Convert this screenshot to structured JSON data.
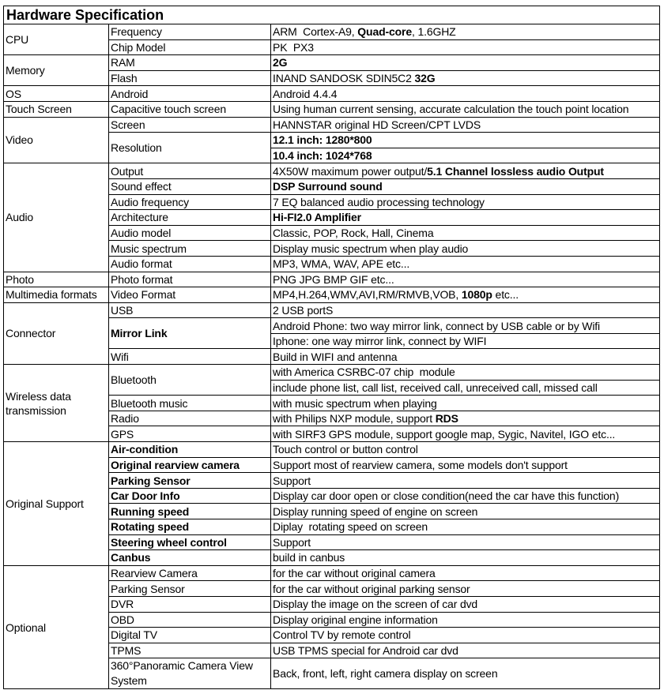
{
  "title": "Hardware Specification",
  "groups": [
    {
      "category": "CPU",
      "items": [
        {
          "name": "Frequency",
          "lines": [
            [
              {
                "t": "ARM  Cortex-A9, "
              },
              {
                "t": "Quad-core",
                "b": true
              },
              {
                "t": ", 1.6GHZ"
              }
            ]
          ]
        },
        {
          "name": "Chip Model",
          "lines": [
            [
              {
                "t": "PK  PX3"
              }
            ]
          ]
        }
      ]
    },
    {
      "category": "Memory",
      "items": [
        {
          "name": "RAM",
          "lines": [
            [
              {
                "t": "2G",
                "b": true
              }
            ]
          ]
        },
        {
          "name": "Flash",
          "lines": [
            [
              {
                "t": "INAND SANDOSK SDIN5C2 "
              },
              {
                "t": "32G",
                "b": true
              }
            ]
          ]
        }
      ]
    },
    {
      "category": "OS",
      "items": [
        {
          "name": "Android",
          "lines": [
            [
              {
                "t": "Android 4.4.4"
              }
            ]
          ]
        }
      ]
    },
    {
      "category": "Touch Screen",
      "items": [
        {
          "name": "Capacitive touch screen",
          "lines": [
            [
              {
                "t": "Using human current sensing, accurate calculation the touch point location"
              }
            ]
          ]
        }
      ]
    },
    {
      "category": "Video",
      "items": [
        {
          "name": "Screen",
          "lines": [
            [
              {
                "t": "HANNSTAR original HD Screen/CPT LVDS"
              }
            ]
          ]
        },
        {
          "name": "Resolution",
          "lines": [
            [
              {
                "t": "12.1 inch: 1280*800",
                "b": true
              }
            ],
            [
              {
                "t": "10.4 inch: 1024*768",
                "b": true
              }
            ]
          ]
        }
      ]
    },
    {
      "category": "Audio",
      "items": [
        {
          "name": "Output",
          "lines": [
            [
              {
                "t": "4X50W maximum power output/"
              },
              {
                "t": "5.1 Channel lossless audio Output",
                "b": true
              }
            ]
          ]
        },
        {
          "name": "Sound effect",
          "lines": [
            [
              {
                "t": "DSP Surround sound",
                "b": true
              }
            ]
          ]
        },
        {
          "name": "Audio frequency",
          "lines": [
            [
              {
                "t": "7 EQ balanced audio processing technology"
              }
            ]
          ]
        },
        {
          "name": "Architecture",
          "lines": [
            [
              {
                "t": "Hi-FI2.0 Amplifier",
                "b": true
              }
            ]
          ]
        },
        {
          "name": "Audio model",
          "lines": [
            [
              {
                "t": "Classic, POP, Rock, Hall, Cinema"
              }
            ]
          ]
        },
        {
          "name": "Music spectrum",
          "lines": [
            [
              {
                "t": "Display music spectrum when play audio"
              }
            ]
          ]
        },
        {
          "name": "Audio format",
          "lines": [
            [
              {
                "t": "MP3, WMA, WAV, APE etc..."
              }
            ]
          ]
        }
      ]
    },
    {
      "category": "Photo",
      "items": [
        {
          "name": "Photo format",
          "lines": [
            [
              {
                "t": "PNG JPG BMP GIF etc..."
              }
            ]
          ]
        }
      ]
    },
    {
      "category": "Multimedia formats",
      "items": [
        {
          "name": "Video Format",
          "lines": [
            [
              {
                "t": "MP4,H.264,WMV,AVI,RM/RMVB,VOB, "
              },
              {
                "t": "1080p",
                "b": true
              },
              {
                "t": " etc..."
              }
            ]
          ]
        }
      ]
    },
    {
      "category": "Connector",
      "items": [
        {
          "name": "USB",
          "lines": [
            [
              {
                "t": "2 USB portS"
              }
            ]
          ]
        },
        {
          "name": "Mirror Link",
          "bold": true,
          "lines": [
            [
              {
                "t": "Android Phone: two way mirror link, connect by USB cable or by Wifi"
              }
            ],
            [
              {
                "t": "Iphone: one way mirror link, connect by WIFI"
              }
            ]
          ]
        },
        {
          "name": "Wifi",
          "lines": [
            [
              {
                "t": "Build in WIFI and antenna"
              }
            ]
          ]
        }
      ]
    },
    {
      "category": "Wireless data transmission",
      "items": [
        {
          "name": "Bluetooth",
          "lines": [
            [
              {
                "t": "with America CSRBC-07 chip  module"
              }
            ],
            [
              {
                "t": "include phone list, call list, received call, unreceived call, missed call"
              }
            ]
          ]
        },
        {
          "name": "Bluetooth music",
          "lines": [
            [
              {
                "t": "with music spectrum when playing"
              }
            ]
          ]
        },
        {
          "name": "Radio",
          "lines": [
            [
              {
                "t": "with Philips NXP module, support "
              },
              {
                "t": "RDS",
                "b": true
              }
            ]
          ]
        },
        {
          "name": "GPS",
          "lines": [
            [
              {
                "t": "with SIRF3 GPS module, support google map, Sygic, Navitel, IGO etc..."
              }
            ]
          ]
        }
      ]
    },
    {
      "category": "Original Support",
      "items": [
        {
          "name": "Air-condition",
          "bold": true,
          "lines": [
            [
              {
                "t": "Touch control or button control"
              }
            ]
          ]
        },
        {
          "name": "Original rearview camera",
          "bold": true,
          "lines": [
            [
              {
                "t": "Support most of rearview camera, some models don't support"
              }
            ]
          ]
        },
        {
          "name": "Parking Sensor",
          "bold": true,
          "lines": [
            [
              {
                "t": "Support"
              }
            ]
          ]
        },
        {
          "name": "Car Door Info",
          "bold": true,
          "lines": [
            [
              {
                "t": "Display car door open or close condition(need the car have this function)"
              }
            ]
          ]
        },
        {
          "name": "Running speed",
          "bold": true,
          "lines": [
            [
              {
                "t": "Display running speed of engine on screen"
              }
            ]
          ]
        },
        {
          "name": "Rotating speed",
          "bold": true,
          "lines": [
            [
              {
                "t": "Diplay  rotating speed on screen"
              }
            ]
          ]
        },
        {
          "name": "Steering wheel control",
          "bold": true,
          "lines": [
            [
              {
                "t": "Support"
              }
            ]
          ]
        },
        {
          "name": "Canbus",
          "bold": true,
          "lines": [
            [
              {
                "t": "build in canbus"
              }
            ]
          ]
        }
      ]
    },
    {
      "category": "Optional",
      "items": [
        {
          "name": "Rearview Camera",
          "lines": [
            [
              {
                "t": "for the car without original camera"
              }
            ]
          ]
        },
        {
          "name": "Parking Sensor",
          "lines": [
            [
              {
                "t": "for the car without original parking sensor"
              }
            ]
          ]
        },
        {
          "name": "DVR",
          "lines": [
            [
              {
                "t": "Display the image on the screen of car dvd"
              }
            ]
          ]
        },
        {
          "name": "OBD",
          "lines": [
            [
              {
                "t": "Display original engine information"
              }
            ]
          ]
        },
        {
          "name": "Digital TV",
          "lines": [
            [
              {
                "t": "Control TV by remote control"
              }
            ]
          ]
        },
        {
          "name": "TPMS",
          "lines": [
            [
              {
                "t": "USB TPMS special for Android car dvd"
              }
            ]
          ]
        },
        {
          "name": "360°Panoramic Camera View System",
          "wrap": true,
          "lines": [
            [
              {
                "t": "Back, front, left, right camera display on screen"
              }
            ]
          ]
        }
      ]
    }
  ]
}
